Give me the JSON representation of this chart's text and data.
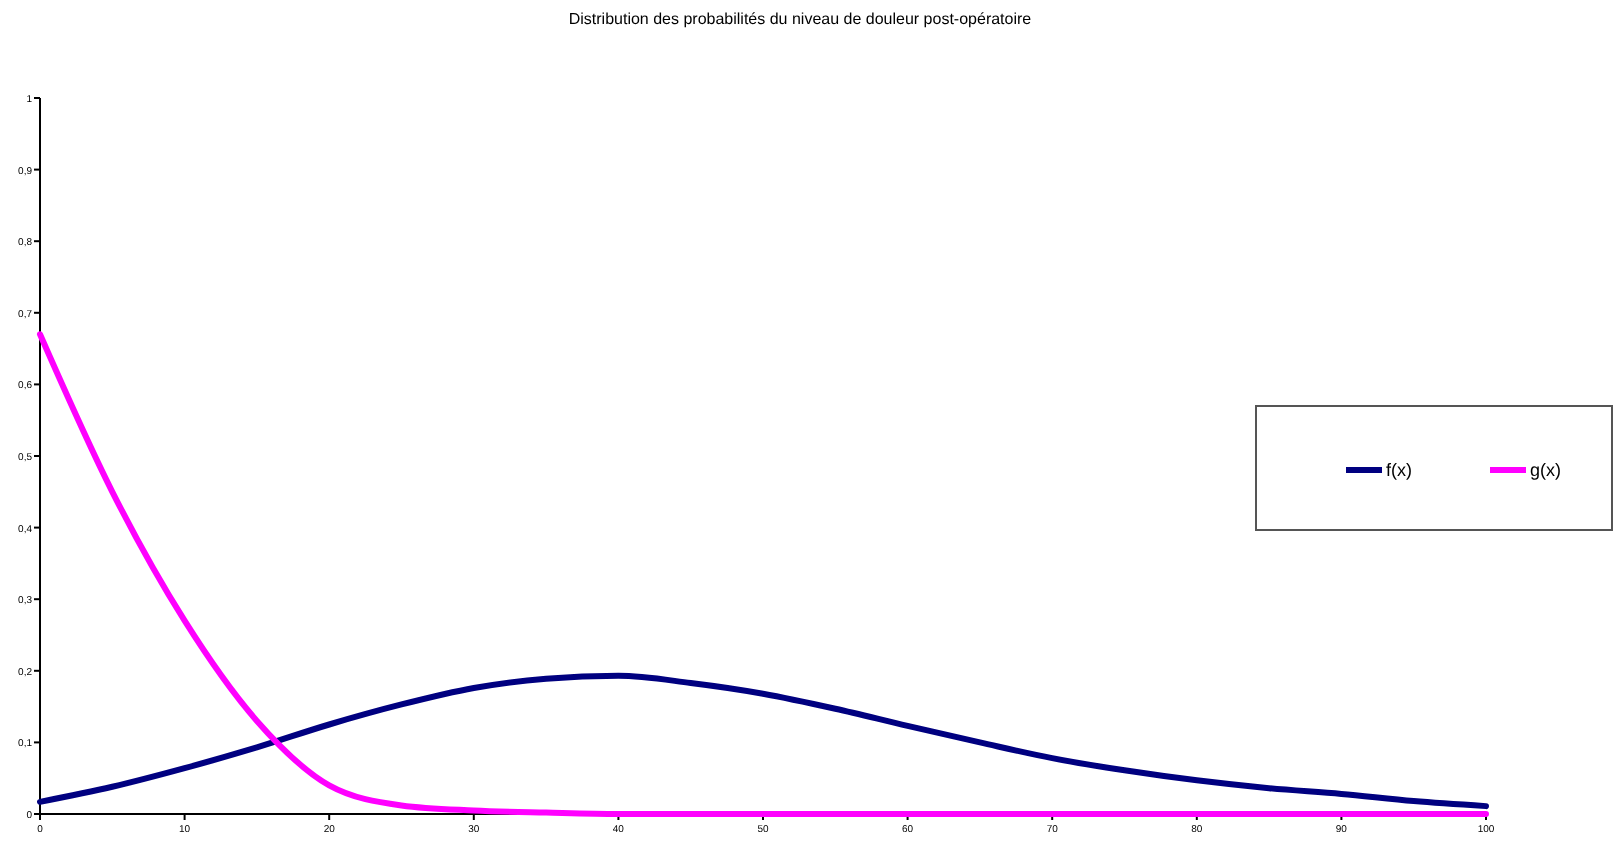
{
  "chart_data": {
    "type": "line",
    "title": "Distribution des probabilités du niveau de douleur post-opératoire",
    "x": [
      0,
      5,
      10,
      15,
      20,
      25,
      30,
      35,
      40,
      45,
      50,
      55,
      60,
      65,
      70,
      75,
      80,
      85,
      90,
      95,
      100
    ],
    "series": [
      {
        "name": "f(x)",
        "color": "#000080",
        "values": [
          0.017,
          0.038,
          0.064,
          0.093,
          0.125,
          0.153,
          0.176,
          0.189,
          0.193,
          0.183,
          0.168,
          0.147,
          0.123,
          0.1,
          0.078,
          0.061,
          0.047,
          0.036,
          0.028,
          0.018,
          0.011
        ]
      },
      {
        "name": "g(x)",
        "color": "#ff00ff",
        "values": [
          0.67,
          0.45,
          0.27,
          0.13,
          0.04,
          0.012,
          0.005,
          0.002,
          0,
          0,
          0,
          0,
          0,
          0,
          0,
          0,
          0,
          0,
          0,
          0,
          0
        ]
      }
    ],
    "xlim": [
      0,
      100
    ],
    "xticks": [
      0,
      10,
      20,
      30,
      40,
      50,
      60,
      70,
      80,
      90,
      100
    ],
    "ylim": [
      0,
      1
    ],
    "yticks": [
      0,
      {
        "value": 0.1,
        "label": "0,1"
      },
      {
        "value": 0.2,
        "label": "0,2"
      },
      {
        "value": 0.3,
        "label": "0,3"
      },
      {
        "value": 0.4,
        "label": "0,4"
      },
      {
        "value": 0.5,
        "label": "0,5"
      },
      {
        "value": 0.6,
        "label": "0,6"
      },
      {
        "value": 0.7,
        "label": "0,7"
      },
      {
        "value": 0.8,
        "label": "0,8"
      },
      {
        "value": 0.9,
        "label": "0,9"
      },
      1
    ],
    "grid": false,
    "legend": "right",
    "marker": "none",
    "line_style": "solid"
  }
}
